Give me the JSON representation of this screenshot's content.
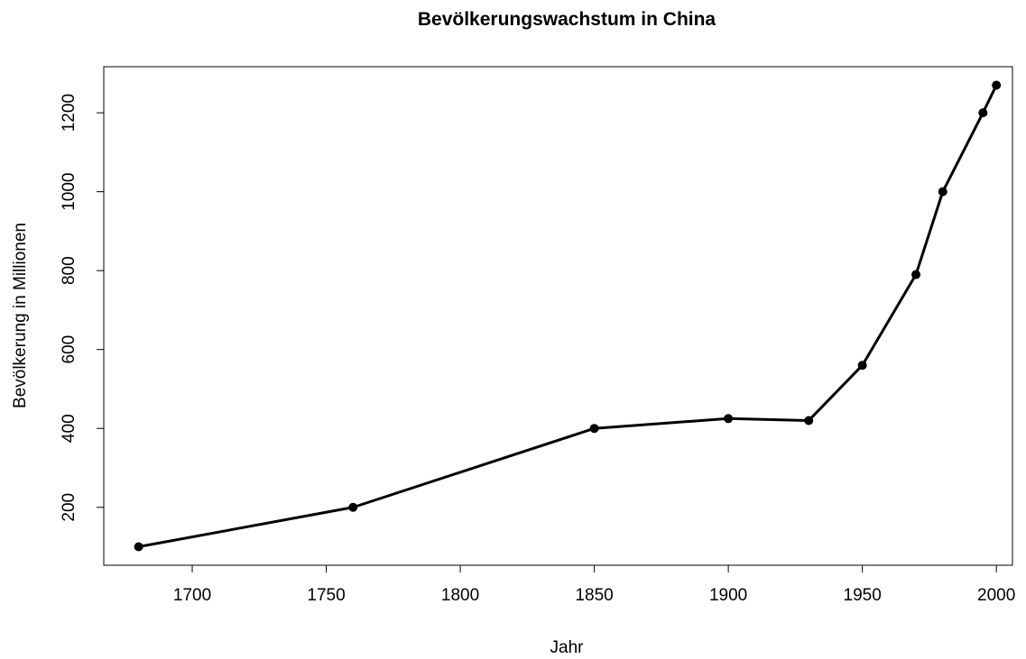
{
  "chart_data": {
    "type": "line",
    "title": "Bevölkerungswachstum in China",
    "x_label": "Jahr",
    "y_label": "Bevölkerung in Millionen",
    "x": [
      1680,
      1760,
      1850,
      1900,
      1930,
      1950,
      1970,
      1980,
      1995,
      2000
    ],
    "values": [
      100,
      200,
      400,
      425,
      420,
      560,
      790,
      1000,
      1200,
      1270
    ],
    "color": "#000000",
    "xlim": [
      1667,
      2006
    ],
    "xticks": [
      1700,
      1750,
      1800,
      1850,
      1900,
      1950,
      2000
    ],
    "ylim": [
      53.2,
      1316.8
    ],
    "yticks": [
      200,
      400,
      600,
      800,
      1000,
      1200
    ]
  }
}
